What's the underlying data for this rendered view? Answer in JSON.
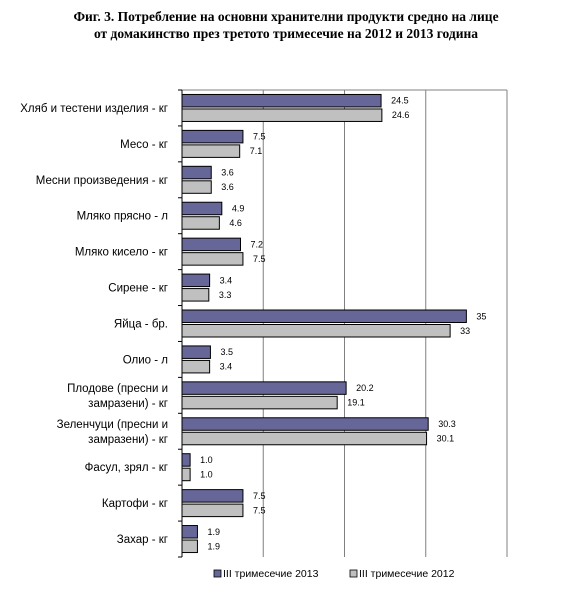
{
  "title": {
    "line1": "Фиг. 3. Потребление на основни хранителни продукти средно на лице",
    "line2": "от домакинство през третото тримесечие на 2012 и 2013 година"
  },
  "colors": {
    "series_2013": "#666699",
    "series_2012": "#c0c0c0",
    "grid": "#808080",
    "bar_stroke": "#000000"
  },
  "chart_data": {
    "type": "bar",
    "orientation": "horizontal",
    "categories": [
      [
        "Хляб и тестени изделия - кг"
      ],
      [
        "Месо - кг"
      ],
      [
        "Месни произведения  - кг"
      ],
      [
        "Мляко прясно - л"
      ],
      [
        "Мляко кисело - кг"
      ],
      [
        "Сирене - кг"
      ],
      [
        "Яйца - бр."
      ],
      [
        "Олио - л"
      ],
      [
        "Плодове (пресни и",
        "замразени) - кг"
      ],
      [
        "Зеленчуци (пресни и",
        "замразени) - кг"
      ],
      [
        "Фасул, зрял - кг"
      ],
      [
        "Картофи - кг"
      ],
      [
        "Захар - кг"
      ]
    ],
    "series": [
      {
        "name": "III тримесечие 2013",
        "values": [
          24.5,
          7.5,
          3.6,
          4.9,
          7.2,
          3.4,
          35,
          3.5,
          20.2,
          30.3,
          1.0,
          7.5,
          1.9
        ],
        "labels": [
          "24.5",
          "7.5",
          "3.6",
          "4.9",
          "7.2",
          "3.4",
          "35",
          "3.5",
          "20.2",
          "30.3",
          "1.0",
          "7.5",
          "1.9"
        ]
      },
      {
        "name": "III тримесечие 2012",
        "values": [
          24.6,
          7.1,
          3.6,
          4.6,
          7.5,
          3.3,
          33,
          3.4,
          19.1,
          30.1,
          1.0,
          7.5,
          1.9
        ],
        "labels": [
          "24.6",
          "7.1",
          "3.6",
          "4.6",
          "7.5",
          "3.3",
          "33",
          "3.4",
          "19.1",
          "30.1",
          "1.0",
          "7.5",
          "1.9"
        ]
      }
    ],
    "xlim": [
      0,
      40
    ],
    "grid": true,
    "legend_position": "bottom"
  }
}
